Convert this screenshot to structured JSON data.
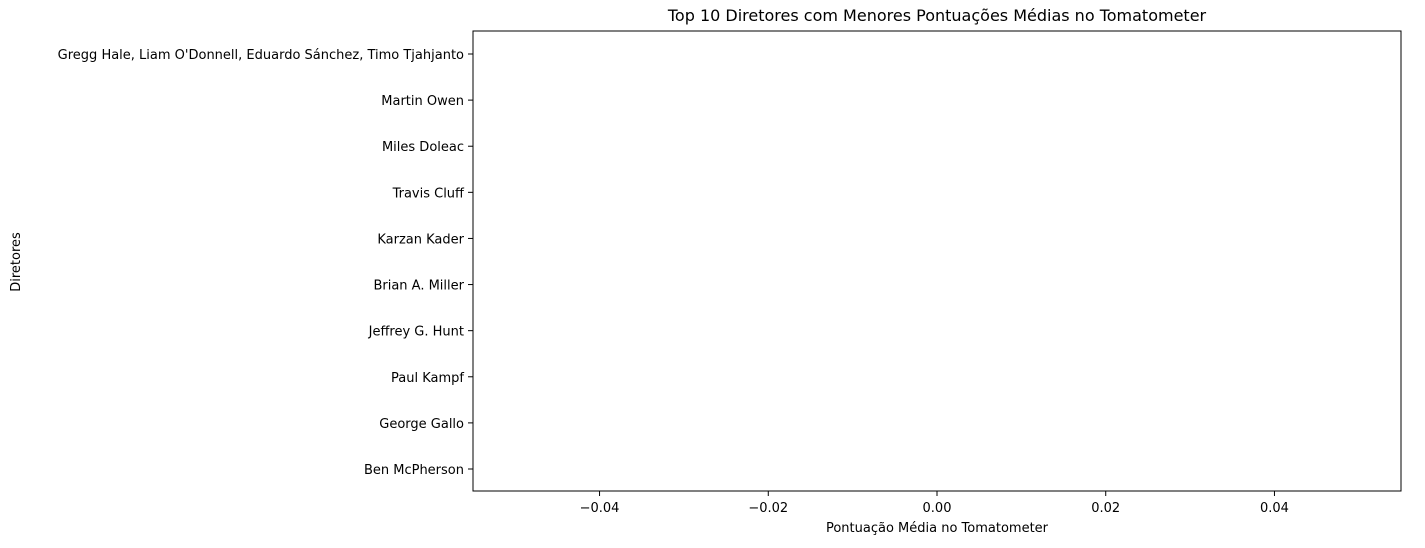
{
  "chart_data": {
    "type": "bar",
    "orientation": "horizontal",
    "title": "Top 10 Diretores com Menores Pontuações Médias no Tomatometer",
    "xlabel": "Pontuação Média no Tomatometer",
    "ylabel": "Diretores",
    "categories": [
      "Gregg Hale, Liam O'Donnell, Eduardo Sánchez, Timo Tjahjanto",
      "Martin Owen",
      "Miles Doleac",
      "Travis Cluff",
      "Karzan Kader",
      "Brian A. Miller",
      "Jeffrey G. Hunt",
      "Paul Kampf",
      "George Gallo",
      "Ben McPherson"
    ],
    "values": [
      0,
      0,
      0,
      0,
      0,
      0,
      0,
      0,
      0,
      0
    ],
    "xlim": [
      -0.055,
      0.055
    ],
    "xticks": [
      -0.04,
      -0.02,
      0.0,
      0.02,
      0.04
    ],
    "xtick_labels": [
      "−0.04",
      "−0.02",
      "0.00",
      "0.02",
      "0.04"
    ],
    "grid": false,
    "legend": "none",
    "colors": {
      "bar": "#1f77b4",
      "axis": "#000000",
      "background": "#ffffff"
    }
  }
}
